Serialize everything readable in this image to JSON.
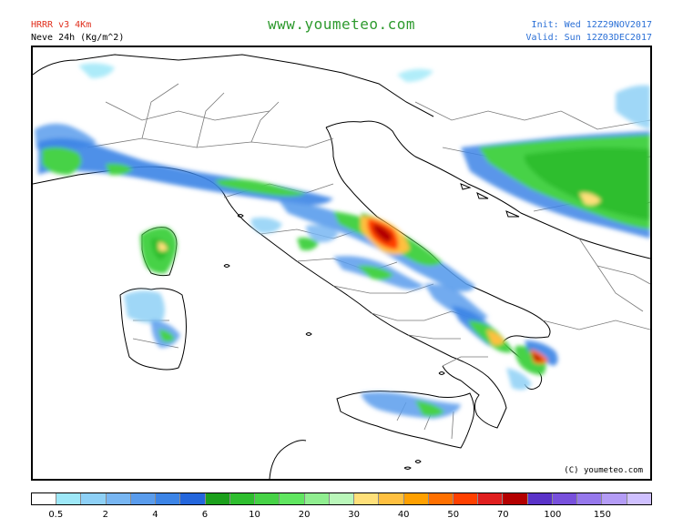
{
  "header": {
    "model": "HRRR v3 4Km",
    "variable": "Neve 24h (Kg/m^2)",
    "site": "www.youmeteo.com",
    "init": "Init: Wed 12Z29NOV2017",
    "valid": "Valid: Sun 12Z03DEC2017"
  },
  "map": {
    "copyright": "(C) youmeteo.com"
  },
  "legend": {
    "colors": [
      "#ffffff",
      "#9ee8f8",
      "#8ed0f6",
      "#78b6f2",
      "#5a9cec",
      "#3c84e6",
      "#2466dc",
      "#1ca01c",
      "#2ebe2e",
      "#46d246",
      "#60e660",
      "#90ee90",
      "#baf7ba",
      "#ffe07a",
      "#ffc040",
      "#ffa000",
      "#ff7000",
      "#ff4000",
      "#e01e1e",
      "#b40000",
      "#5a32c8",
      "#7850dc",
      "#9678ec",
      "#b49cf6",
      "#cfc0ff"
    ],
    "ticks": [
      "0.5",
      "2",
      "4",
      "6",
      "10",
      "20",
      "30",
      "40",
      "50",
      "70",
      "100",
      "150"
    ]
  }
}
